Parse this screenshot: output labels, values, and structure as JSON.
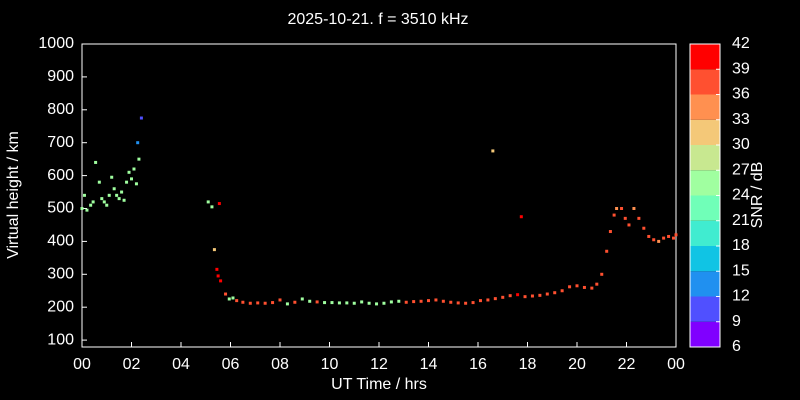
{
  "chart_data": {
    "type": "scatter",
    "title": "2025-10-21. f = 3510 kHz",
    "x_label": "UT Time / hrs",
    "y_label": "Virtual height / km",
    "x": [
      0.0,
      0.1,
      0.2,
      0.35,
      0.45,
      0.55,
      0.7,
      0.8,
      0.9,
      1.0,
      1.1,
      1.2,
      1.3,
      1.4,
      1.5,
      1.6,
      1.7,
      1.8,
      1.9,
      2.0,
      2.1,
      2.2,
      2.3,
      2.25,
      2.4,
      5.1,
      5.25,
      5.55,
      5.35,
      5.45,
      5.5,
      5.6,
      5.8,
      5.95,
      6.1,
      6.25,
      6.5,
      6.8,
      7.1,
      7.4,
      7.7,
      8.0,
      8.3,
      8.6,
      8.9,
      9.2,
      9.5,
      9.8,
      10.1,
      10.4,
      10.7,
      11.0,
      11.3,
      11.6,
      11.9,
      12.2,
      12.5,
      12.8,
      13.1,
      13.4,
      13.7,
      14.0,
      14.3,
      14.6,
      14.9,
      15.2,
      15.5,
      15.8,
      16.1,
      16.4,
      16.7,
      17.0,
      17.3,
      17.6,
      17.9,
      18.2,
      18.5,
      18.8,
      19.1,
      19.4,
      19.7,
      20.0,
      20.3,
      20.6,
      20.8,
      21.0,
      21.2,
      21.35,
      21.5,
      21.6,
      21.8,
      21.95,
      22.1,
      22.3,
      22.5,
      22.7,
      22.9,
      23.1,
      23.3,
      23.5,
      23.7,
      23.9,
      24.0,
      16.6,
      17.75
    ],
    "y": [
      500,
      540,
      495,
      510,
      520,
      640,
      580,
      530,
      520,
      510,
      540,
      595,
      560,
      540,
      530,
      550,
      525,
      580,
      610,
      590,
      620,
      575,
      650,
      700,
      775,
      520,
      505,
      515,
      375,
      315,
      295,
      280,
      240,
      225,
      228,
      220,
      215,
      212,
      213,
      212,
      214,
      222,
      210,
      215,
      225,
      218,
      216,
      214,
      214,
      213,
      213,
      212,
      216,
      212,
      210,
      212,
      216,
      218,
      215,
      217,
      218,
      220,
      222,
      218,
      215,
      213,
      212,
      214,
      220,
      222,
      226,
      230,
      235,
      238,
      232,
      234,
      236,
      240,
      244,
      250,
      262,
      265,
      260,
      258,
      270,
      300,
      370,
      430,
      480,
      500,
      500,
      470,
      450,
      500,
      470,
      440,
      415,
      405,
      400,
      410,
      415,
      410,
      420,
      675,
      475
    ],
    "snr": [
      26,
      26,
      26,
      26,
      26,
      26,
      26,
      26,
      26,
      26,
      26,
      26,
      26,
      26,
      26,
      26,
      26,
      26,
      26,
      26,
      26,
      26,
      26,
      12,
      10,
      24,
      24,
      40,
      32,
      40,
      40,
      40,
      38,
      26,
      26,
      36,
      38,
      38,
      38,
      38,
      38,
      36,
      24,
      38,
      24,
      24,
      38,
      26,
      26,
      26,
      26,
      26,
      26,
      26,
      26,
      24,
      26,
      26,
      38,
      38,
      36,
      38,
      38,
      38,
      38,
      38,
      38,
      38,
      38,
      38,
      38,
      38,
      38,
      40,
      38,
      38,
      36,
      38,
      38,
      36,
      36,
      36,
      38,
      38,
      36,
      36,
      36,
      36,
      36,
      33,
      36,
      38,
      36,
      33,
      36,
      36,
      38,
      36,
      33,
      38,
      38,
      38,
      38,
      32,
      40
    ],
    "xlim": [
      0,
      24
    ],
    "ylim": [
      79,
      1000
    ],
    "xticks": [
      {
        "value": 0,
        "label": "00"
      },
      {
        "value": 2,
        "label": "02"
      },
      {
        "value": 4,
        "label": "04"
      },
      {
        "value": 6,
        "label": "06"
      },
      {
        "value": 8,
        "label": "08"
      },
      10,
      12,
      14,
      16,
      18,
      20,
      22,
      {
        "value": 24,
        "label": "00"
      }
    ],
    "yticks": [
      100,
      200,
      300,
      400,
      500,
      600,
      700,
      800,
      900,
      1000
    ],
    "colorbar": {
      "label": "SNR / dB",
      "lim": [
        6,
        42
      ],
      "ticks": [
        6,
        9,
        12,
        15,
        18,
        21,
        24,
        27,
        30,
        33,
        36,
        39,
        42
      ],
      "colors": [
        "#8000ff",
        "#5050ff",
        "#2090f0",
        "#10c4e4",
        "#40ecd0",
        "#70ffb8",
        "#a0ffa0",
        "#c8e890",
        "#f4c878",
        "#ff9050",
        "#ff5030",
        "#ff0000"
      ]
    }
  }
}
